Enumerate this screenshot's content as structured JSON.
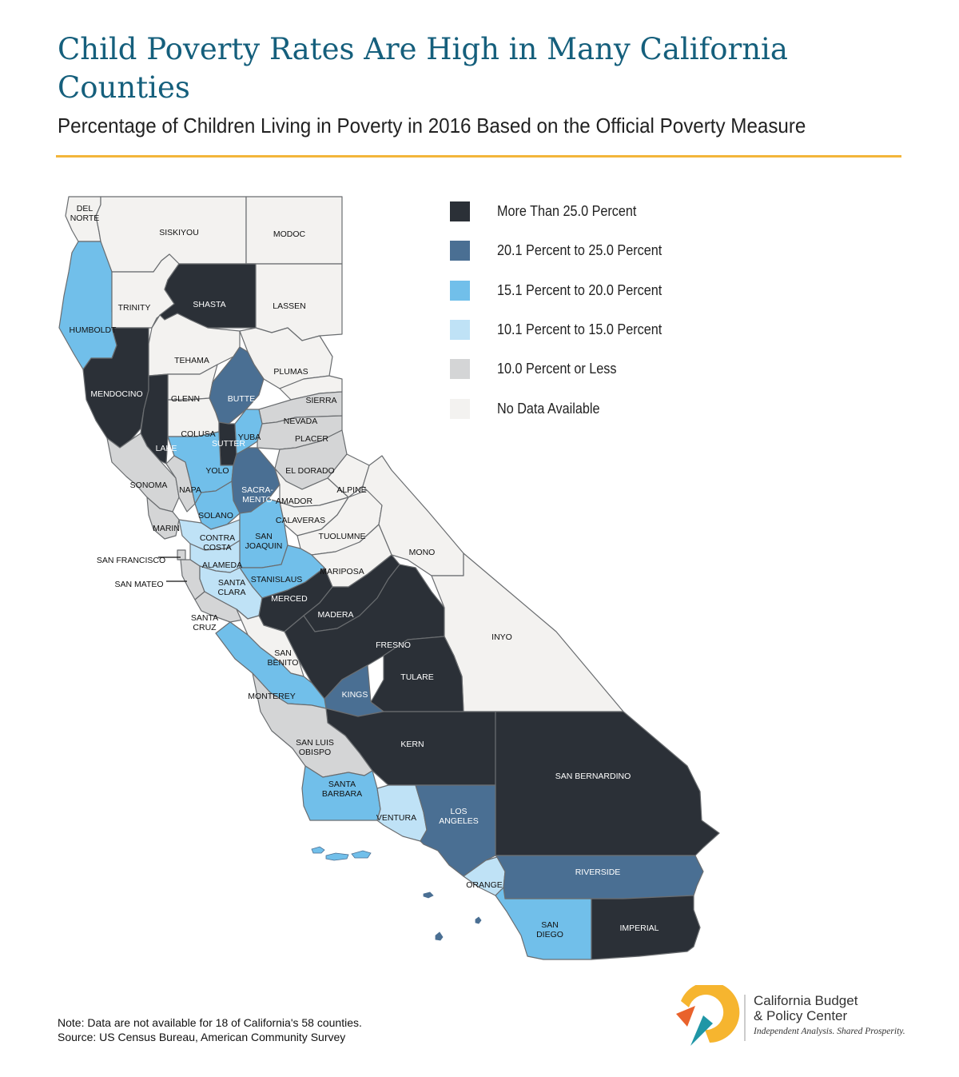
{
  "header": {
    "title": "Child Poverty Rates Are High in Many California Counties",
    "subtitle": "Percentage of Children Living in Poverty in 2016 Based on the Official Poverty Measure"
  },
  "legend": {
    "items": [
      {
        "label": "More Than 25.0 Percent",
        "color": "#2b3037"
      },
      {
        "label": "20.1 Percent to 25.0 Percent",
        "color": "#4a6f93"
      },
      {
        "label": "15.1 Percent to 20.0 Percent",
        "color": "#71bfea"
      },
      {
        "label": "10.1 Percent to 15.0 Percent",
        "color": "#bfe2f6"
      },
      {
        "label": "10.0 Percent or Less",
        "color": "#d4d5d6"
      },
      {
        "label": "No Data Available",
        "color": "#f3f2f0"
      }
    ]
  },
  "counties": [
    {
      "name": "DEL NORTE",
      "lines": [
        "DEL",
        "NORTE"
      ],
      "category": 5
    },
    {
      "name": "SISKIYOU",
      "lines": [
        "SISKIYOU"
      ],
      "category": 5
    },
    {
      "name": "MODOC",
      "lines": [
        "MODOC"
      ],
      "category": 5
    },
    {
      "name": "HUMBOLDT",
      "lines": [
        "HUMBOLDT"
      ],
      "category": 2
    },
    {
      "name": "TRINITY",
      "lines": [
        "TRINITY"
      ],
      "category": 5
    },
    {
      "name": "SHASTA",
      "lines": [
        "SHASTA"
      ],
      "category": 0
    },
    {
      "name": "LASSEN",
      "lines": [
        "LASSEN"
      ],
      "category": 5
    },
    {
      "name": "TEHAMA",
      "lines": [
        "TEHAMA"
      ],
      "category": 5
    },
    {
      "name": "PLUMAS",
      "lines": [
        "PLUMAS"
      ],
      "category": 5
    },
    {
      "name": "MENDOCINO",
      "lines": [
        "MENDOCINO"
      ],
      "category": 0
    },
    {
      "name": "GLENN",
      "lines": [
        "GLENN"
      ],
      "category": 5
    },
    {
      "name": "BUTTE",
      "lines": [
        "BUTTE"
      ],
      "category": 1
    },
    {
      "name": "SIERRA",
      "lines": [
        "SIERRA"
      ],
      "category": 5
    },
    {
      "name": "NEVADA",
      "lines": [
        "NEVADA"
      ],
      "category": 4
    },
    {
      "name": "COLUSA",
      "lines": [
        "COLUSA"
      ],
      "category": 5
    },
    {
      "name": "LAKE",
      "lines": [
        "LAKE"
      ],
      "category": 0
    },
    {
      "name": "SUTTER",
      "lines": [
        "SUTTER"
      ],
      "category": 0
    },
    {
      "name": "YUBA",
      "lines": [
        "YUBA"
      ],
      "category": 2
    },
    {
      "name": "PLACER",
      "lines": [
        "PLACER"
      ],
      "category": 4
    },
    {
      "name": "EL DORADO",
      "lines": [
        "EL DORADO"
      ],
      "category": 4
    },
    {
      "name": "SONOMA",
      "lines": [
        "SONOMA"
      ],
      "category": 4
    },
    {
      "name": "NAPA",
      "lines": [
        "NAPA"
      ],
      "category": 4
    },
    {
      "name": "YOLO",
      "lines": [
        "YOLO"
      ],
      "category": 2
    },
    {
      "name": "SACRAMENTO",
      "lines": [
        "SACRA-",
        "MENTO"
      ],
      "category": 1
    },
    {
      "name": "ALPINE",
      "lines": [
        "ALPINE"
      ],
      "category": 5
    },
    {
      "name": "AMADOR",
      "lines": [
        "AMADOR"
      ],
      "category": 5
    },
    {
      "name": "SOLANO",
      "lines": [
        "SOLANO"
      ],
      "category": 2
    },
    {
      "name": "MARIN",
      "lines": [
        "MARIN"
      ],
      "category": 4
    },
    {
      "name": "CALAVERAS",
      "lines": [
        "CALAVERAS"
      ],
      "category": 5
    },
    {
      "name": "CONTRA COSTA",
      "lines": [
        "CONTRA",
        "COSTA"
      ],
      "category": 3
    },
    {
      "name": "SAN JOAQUIN",
      "lines": [
        "SAN",
        "JOAQUIN"
      ],
      "category": 2
    },
    {
      "name": "TUOLUMNE",
      "lines": [
        "TUOLUMNE"
      ],
      "category": 5
    },
    {
      "name": "SAN FRANCISCO",
      "lines": [
        "SAN FRANCISCO"
      ],
      "category": 4
    },
    {
      "name": "ALAMEDA",
      "lines": [
        "ALAMEDA"
      ],
      "category": 3
    },
    {
      "name": "MONO",
      "lines": [
        "MONO"
      ],
      "category": 5
    },
    {
      "name": "SAN MATEO",
      "lines": [
        "SAN MATEO"
      ],
      "category": 4
    },
    {
      "name": "STANISLAUS",
      "lines": [
        "STANISLAUS"
      ],
      "category": 2
    },
    {
      "name": "MARIPOSA",
      "lines": [
        "MARIPOSA"
      ],
      "category": 5
    },
    {
      "name": "SANTA CLARA",
      "lines": [
        "SANTA",
        "CLARA"
      ],
      "category": 3
    },
    {
      "name": "MERCED",
      "lines": [
        "MERCED"
      ],
      "category": 0
    },
    {
      "name": "MADERA",
      "lines": [
        "MADERA"
      ],
      "category": 0
    },
    {
      "name": "SANTA CRUZ",
      "lines": [
        "SANTA",
        "CRUZ"
      ],
      "category": 4
    },
    {
      "name": "FRESNO",
      "lines": [
        "FRESNO"
      ],
      "category": 0
    },
    {
      "name": "INYO",
      "lines": [
        "INYO"
      ],
      "category": 5
    },
    {
      "name": "SAN BENITO",
      "lines": [
        "SAN",
        "BENITO"
      ],
      "category": 5
    },
    {
      "name": "TULARE",
      "lines": [
        "TULARE"
      ],
      "category": 0
    },
    {
      "name": "KINGS",
      "lines": [
        "KINGS"
      ],
      "category": 1
    },
    {
      "name": "MONTEREY",
      "lines": [
        "MONTEREY"
      ],
      "category": 2
    },
    {
      "name": "KERN",
      "lines": [
        "KERN"
      ],
      "category": 0
    },
    {
      "name": "SAN LUIS OBISPO",
      "lines": [
        "SAN LUIS",
        "OBISPO"
      ],
      "category": 4
    },
    {
      "name": "SAN BERNARDINO",
      "lines": [
        "SAN BERNARDINO"
      ],
      "category": 0
    },
    {
      "name": "SANTA BARBARA",
      "lines": [
        "SANTA",
        "BARBARA"
      ],
      "category": 2
    },
    {
      "name": "VENTURA",
      "lines": [
        "VENTURA"
      ],
      "category": 3
    },
    {
      "name": "LOS ANGELES",
      "lines": [
        "LOS",
        "ANGELES"
      ],
      "category": 1
    },
    {
      "name": "ORANGE",
      "lines": [
        "ORANGE"
      ],
      "category": 3
    },
    {
      "name": "RIVERSIDE",
      "lines": [
        "RIVERSIDE"
      ],
      "category": 1
    },
    {
      "name": "SAN DIEGO",
      "lines": [
        "SAN",
        "DIEGO"
      ],
      "category": 2
    },
    {
      "name": "IMPERIAL",
      "lines": [
        "IMPERIAL"
      ],
      "category": 0
    }
  ],
  "footer": {
    "note": "Note: Data are not available for 18 of California's 58 counties.",
    "source": "Source: US Census Bureau, American Community Survey"
  },
  "logo": {
    "name_line1": "California Budget",
    "name_line2": "& Policy Center",
    "tagline": "Independent Analysis. Shared Prosperity.",
    "colors": {
      "yellow": "#f6b52f",
      "orange": "#e9622b",
      "teal": "#1f96a6"
    }
  }
}
